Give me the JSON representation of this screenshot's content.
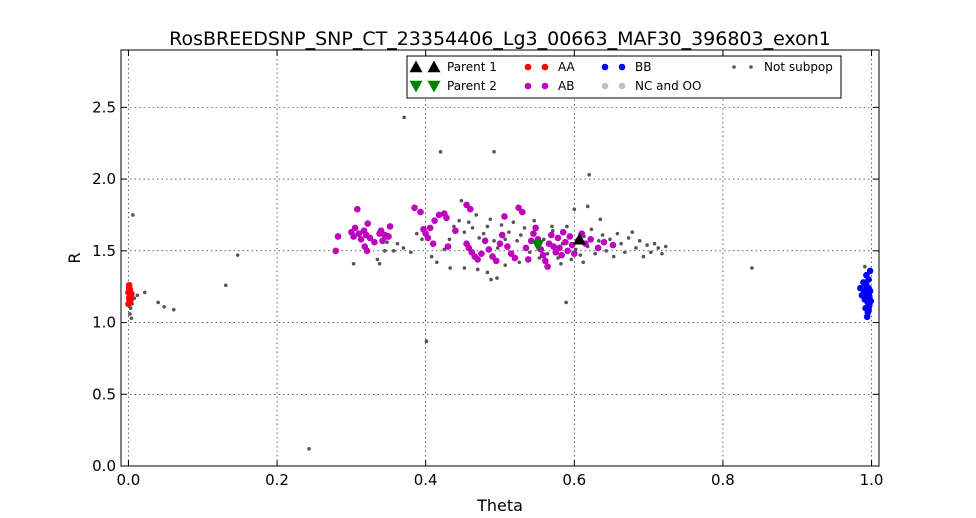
{
  "chart_data": {
    "type": "scatter",
    "title": "RosBREEDSNP_SNP_CT_23354406_Lg3_00663_MAF30_396803_exon1",
    "xlabel": "Theta",
    "ylabel": "R",
    "xlim": [
      -0.01,
      1.01
    ],
    "ylim": [
      0.0,
      2.9
    ],
    "x_ticks": [
      0.0,
      0.2,
      0.4,
      0.6,
      0.8,
      1.0
    ],
    "x_tick_labels": [
      "0.0",
      "0.2",
      "0.4",
      "0.6",
      "0.8",
      "1.0"
    ],
    "y_ticks": [
      0.0,
      0.5,
      1.0,
      1.5,
      2.0,
      2.5
    ],
    "y_tick_labels": [
      "0.0",
      "0.5",
      "1.0",
      "1.5",
      "2.0",
      "2.5"
    ],
    "grid": true,
    "legend_position": "top-right",
    "legend": [
      {
        "label": "Parent 1",
        "marker": "triangle-up",
        "color": "#000000"
      },
      {
        "label": "Parent 2",
        "marker": "triangle-down",
        "color": "#008000"
      },
      {
        "label": "AA",
        "marker": "circle",
        "color": "#ff0000"
      },
      {
        "label": "AB",
        "marker": "circle",
        "color": "#bf00bf"
      },
      {
        "label": "BB",
        "marker": "circle",
        "color": "#0000ff"
      },
      {
        "label": "NC and OO",
        "marker": "circle",
        "color": "#bfbfbf"
      },
      {
        "label": "Not subpop",
        "marker": "small-circle",
        "color": "#555555"
      }
    ],
    "series": [
      {
        "name": "Parent 1",
        "marker": "triangle-up",
        "color": "#000000",
        "points": [
          [
            0.607,
            1.58
          ]
        ]
      },
      {
        "name": "Parent 2",
        "marker": "triangle-down",
        "color": "#008000",
        "points": [
          [
            0.551,
            1.54
          ]
        ]
      },
      {
        "name": "AA",
        "marker": "circle",
        "color": "#ff0000",
        "points": [
          [
            0.001,
            1.26
          ],
          [
            0.002,
            1.23
          ],
          [
            0.0,
            1.21
          ],
          [
            0.003,
            1.19
          ],
          [
            0.001,
            1.17
          ],
          [
            0.002,
            1.15
          ],
          [
            0.0,
            1.13
          ],
          [
            0.004,
            1.2
          ],
          [
            0.003,
            1.16
          ],
          [
            0.001,
            1.24
          ],
          [
            0.002,
            1.18
          ]
        ]
      },
      {
        "name": "AB",
        "marker": "circle",
        "color": "#bf00bf",
        "points": [
          [
            0.279,
            1.5
          ],
          [
            0.282,
            1.6
          ],
          [
            0.3,
            1.63
          ],
          [
            0.303,
            1.6
          ],
          [
            0.305,
            1.66
          ],
          [
            0.308,
            1.79
          ],
          [
            0.31,
            1.62
          ],
          [
            0.313,
            1.58
          ],
          [
            0.317,
            1.64
          ],
          [
            0.32,
            1.61
          ],
          [
            0.322,
            1.69
          ],
          [
            0.325,
            1.59
          ],
          [
            0.318,
            1.53
          ],
          [
            0.321,
            1.5
          ],
          [
            0.331,
            1.56
          ],
          [
            0.338,
            1.62
          ],
          [
            0.34,
            1.64
          ],
          [
            0.342,
            1.57
          ],
          [
            0.345,
            1.61
          ],
          [
            0.348,
            1.6
          ],
          [
            0.35,
            1.6
          ],
          [
            0.352,
            1.67
          ],
          [
            0.385,
            1.8
          ],
          [
            0.393,
            1.77
          ],
          [
            0.397,
            1.65
          ],
          [
            0.4,
            1.62
          ],
          [
            0.403,
            1.59
          ],
          [
            0.406,
            1.66
          ],
          [
            0.412,
            1.71
          ],
          [
            0.418,
            1.75
          ],
          [
            0.425,
            1.76
          ],
          [
            0.428,
            1.73
          ],
          [
            0.41,
            1.55
          ],
          [
            0.43,
            1.53
          ],
          [
            0.44,
            1.64
          ],
          [
            0.455,
            1.82
          ],
          [
            0.46,
            1.79
          ],
          [
            0.455,
            1.55
          ],
          [
            0.458,
            1.52
          ],
          [
            0.462,
            1.49
          ],
          [
            0.466,
            1.46
          ],
          [
            0.47,
            1.44
          ],
          [
            0.475,
            1.48
          ],
          [
            0.48,
            1.57
          ],
          [
            0.485,
            1.51
          ],
          [
            0.49,
            1.46
          ],
          [
            0.495,
            1.43
          ],
          [
            0.5,
            1.55
          ],
          [
            0.503,
            1.61
          ],
          [
            0.506,
            1.74
          ],
          [
            0.51,
            1.53
          ],
          [
            0.515,
            1.48
          ],
          [
            0.52,
            1.45
          ],
          [
            0.525,
            1.8
          ],
          [
            0.53,
            1.77
          ],
          [
            0.535,
            1.52
          ],
          [
            0.538,
            1.44
          ],
          [
            0.542,
            1.57
          ],
          [
            0.545,
            1.62
          ],
          [
            0.548,
            1.66
          ],
          [
            0.551,
            1.58
          ],
          [
            0.555,
            1.51
          ],
          [
            0.558,
            1.47
          ],
          [
            0.561,
            1.43
          ],
          [
            0.564,
            1.39
          ],
          [
            0.566,
            1.55
          ],
          [
            0.569,
            1.61
          ],
          [
            0.572,
            1.53
          ],
          [
            0.575,
            1.49
          ],
          [
            0.578,
            1.59
          ],
          [
            0.58,
            1.52
          ],
          [
            0.583,
            1.47
          ],
          [
            0.585,
            1.63
          ],
          [
            0.588,
            1.56
          ],
          [
            0.591,
            1.5
          ],
          [
            0.594,
            1.6
          ],
          [
            0.597,
            1.54
          ],
          [
            0.6,
            1.48
          ],
          [
            0.605,
            1.57
          ],
          [
            0.61,
            1.62
          ],
          [
            0.615,
            1.55
          ],
          [
            0.622,
            1.58
          ],
          [
            0.632,
            1.52
          ],
          [
            0.64,
            1.56
          ],
          [
            0.652,
            1.54
          ]
        ]
      },
      {
        "name": "BB",
        "marker": "circle",
        "color": "#0000ff",
        "points": [
          [
            0.985,
            1.24
          ],
          [
            0.987,
            1.19
          ],
          [
            0.989,
            1.28
          ],
          [
            0.99,
            1.22
          ],
          [
            0.991,
            1.16
          ],
          [
            0.992,
            1.1
          ],
          [
            0.993,
            1.33
          ],
          [
            0.993,
            1.26
          ],
          [
            0.994,
            1.2
          ],
          [
            0.995,
            1.14
          ],
          [
            0.995,
            1.07
          ],
          [
            0.996,
            1.3
          ],
          [
            0.996,
            1.24
          ],
          [
            0.997,
            1.18
          ],
          [
            0.997,
            1.12
          ],
          [
            0.998,
            1.36
          ],
          [
            0.998,
            1.22
          ],
          [
            0.999,
            1.15
          ],
          [
            0.994,
            1.04
          ],
          [
            0.996,
            1.09
          ]
        ]
      },
      {
        "name": "Not subpop",
        "marker": "small-circle",
        "color": "#555555",
        "points": [
          [
            0.006,
            1.75
          ],
          [
            0.003,
            1.1
          ],
          [
            0.002,
            1.06
          ],
          [
            0.005,
            1.13
          ],
          [
            0.004,
            1.03
          ],
          [
            0.008,
            1.17
          ],
          [
            0.012,
            1.19
          ],
          [
            0.022,
            1.21
          ],
          [
            0.04,
            1.14
          ],
          [
            0.048,
            1.11
          ],
          [
            0.061,
            1.09
          ],
          [
            0.131,
            1.26
          ],
          [
            0.147,
            1.47
          ],
          [
            0.243,
            0.12
          ],
          [
            0.371,
            2.43
          ],
          [
            0.401,
            0.87
          ],
          [
            0.42,
            2.19
          ],
          [
            0.492,
            2.19
          ],
          [
            0.62,
            2.03
          ],
          [
            0.839,
            1.38
          ],
          [
            0.589,
            1.14
          ],
          [
            0.415,
            1.42
          ],
          [
            0.433,
            1.38
          ],
          [
            0.618,
            1.81
          ],
          [
            0.991,
            1.39
          ],
          [
            0.303,
            1.41
          ],
          [
            0.335,
            1.44
          ],
          [
            0.338,
            1.41
          ],
          [
            0.345,
            1.5
          ],
          [
            0.348,
            1.56
          ],
          [
            0.357,
            1.5
          ],
          [
            0.362,
            1.55
          ],
          [
            0.37,
            1.52
          ],
          [
            0.38,
            1.49
          ],
          [
            0.388,
            1.62
          ],
          [
            0.395,
            1.58
          ],
          [
            0.408,
            1.46
          ],
          [
            0.425,
            1.51
          ],
          [
            0.432,
            1.58
          ],
          [
            0.438,
            1.67
          ],
          [
            0.445,
            1.71
          ],
          [
            0.448,
            1.85
          ],
          [
            0.452,
            1.63
          ],
          [
            0.458,
            1.7
          ],
          [
            0.463,
            1.66
          ],
          [
            0.468,
            1.75
          ],
          [
            0.472,
            1.59
          ],
          [
            0.478,
            1.62
          ],
          [
            0.483,
            1.67
          ],
          [
            0.487,
            1.72
          ],
          [
            0.492,
            1.57
          ],
          [
            0.497,
            1.52
          ],
          [
            0.502,
            1.68
          ],
          [
            0.507,
            1.58
          ],
          [
            0.512,
            1.63
          ],
          [
            0.518,
            1.7
          ],
          [
            0.523,
            1.57
          ],
          [
            0.528,
            1.61
          ],
          [
            0.533,
            1.66
          ],
          [
            0.452,
            1.38
          ],
          [
            0.47,
            1.37
          ],
          [
            0.483,
            1.35
          ],
          [
            0.488,
            1.3
          ],
          [
            0.496,
            1.31
          ],
          [
            0.507,
            1.4
          ],
          [
            0.526,
            1.42
          ],
          [
            0.54,
            1.49
          ],
          [
            0.546,
            1.71
          ],
          [
            0.553,
            1.45
          ],
          [
            0.559,
            1.58
          ],
          [
            0.564,
            1.48
          ],
          [
            0.571,
            1.64
          ],
          [
            0.578,
            1.45
          ],
          [
            0.584,
            1.55
          ],
          [
            0.59,
            1.67
          ],
          [
            0.596,
            1.44
          ],
          [
            0.602,
            1.51
          ],
          [
            0.608,
            1.47
          ],
          [
            0.613,
            1.6
          ],
          [
            0.618,
            1.53
          ],
          [
            0.623,
            1.65
          ],
          [
            0.628,
            1.48
          ],
          [
            0.633,
            1.57
          ],
          [
            0.638,
            1.61
          ],
          [
            0.643,
            1.5
          ],
          [
            0.648,
            1.58
          ],
          [
            0.653,
            1.46
          ],
          [
            0.658,
            1.62
          ],
          [
            0.663,
            1.55
          ],
          [
            0.668,
            1.49
          ],
          [
            0.673,
            1.59
          ],
          [
            0.678,
            1.63
          ],
          [
            0.683,
            1.52
          ],
          [
            0.688,
            1.57
          ],
          [
            0.693,
            1.46
          ],
          [
            0.698,
            1.54
          ],
          [
            0.703,
            1.49
          ],
          [
            0.708,
            1.55
          ],
          [
            0.713,
            1.52
          ],
          [
            0.718,
            1.48
          ],
          [
            0.723,
            1.53
          ],
          [
            0.6,
            1.79
          ],
          [
            0.635,
            1.72
          ],
          [
            0.57,
            1.67
          ],
          [
            0.612,
            1.42
          ],
          [
            0.582,
            1.41
          ]
        ]
      }
    ]
  }
}
